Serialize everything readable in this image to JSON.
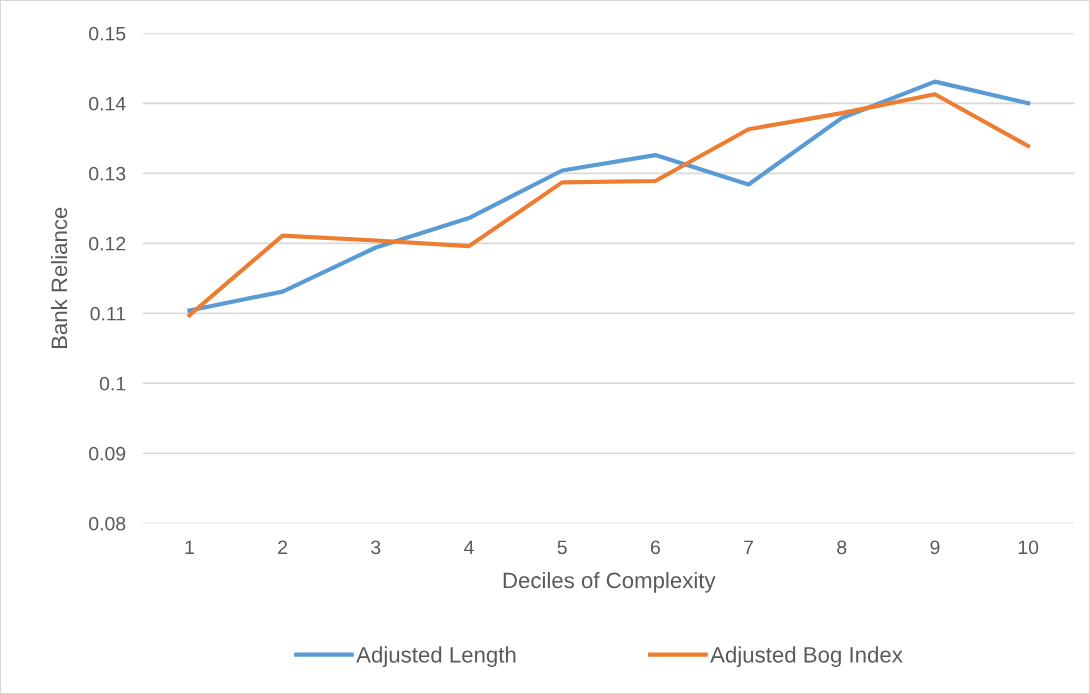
{
  "chart_data": {
    "type": "line",
    "xlabel": "Deciles of Complexity",
    "ylabel": "Bank Reliance",
    "categories": [
      "1",
      "2",
      "3",
      "4",
      "5",
      "6",
      "7",
      "8",
      "9",
      "10"
    ],
    "series": [
      {
        "name": "Adjusted Length",
        "color": "#5b9bd5",
        "values": [
          0.1104,
          0.1131,
          0.1194,
          0.1236,
          0.1304,
          0.1326,
          0.1284,
          0.1379,
          0.1431,
          0.14
        ]
      },
      {
        "name": "Adjusted Bog Index",
        "color": "#ed7d31",
        "values": [
          0.1097,
          0.1211,
          0.1204,
          0.1196,
          0.1287,
          0.1289,
          0.1363,
          0.1386,
          0.1413,
          0.1339
        ]
      }
    ],
    "ylim": [
      0.08,
      0.15
    ],
    "yticks": [
      {
        "value": 0.08,
        "label": "0.08"
      },
      {
        "value": 0.09,
        "label": "0.09"
      },
      {
        "value": 0.1,
        "label": "0.1"
      },
      {
        "value": 0.11,
        "label": "0.11"
      },
      {
        "value": 0.12,
        "label": "0.12"
      },
      {
        "value": 0.13,
        "label": "0.13"
      },
      {
        "value": 0.14,
        "label": "0.14"
      },
      {
        "value": 0.15,
        "label": "0.15"
      }
    ],
    "grid": "y",
    "legend": "bottom",
    "marker": "none",
    "line_style": "solid"
  }
}
